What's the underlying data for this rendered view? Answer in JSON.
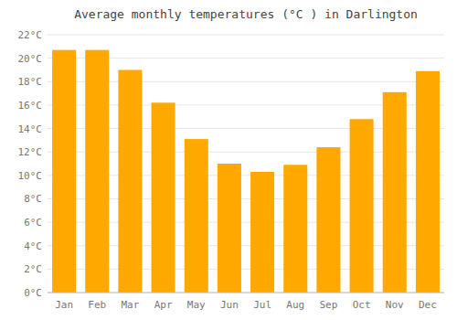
{
  "chart_data": {
    "type": "bar",
    "title": "Average monthly temperatures (°C ) in Darlington",
    "categories": [
      "Jan",
      "Feb",
      "Mar",
      "Apr",
      "May",
      "Jun",
      "Jul",
      "Aug",
      "Sep",
      "Oct",
      "Nov",
      "Dec"
    ],
    "values": [
      20.7,
      20.7,
      19.0,
      16.2,
      13.1,
      11.0,
      10.3,
      10.9,
      12.4,
      14.8,
      17.1,
      18.9
    ],
    "color": "#FFA800",
    "ylim": [
      0,
      22
    ],
    "yticks": [
      {
        "value": 0,
        "label": "0°C"
      },
      {
        "value": 2,
        "label": "2°C"
      },
      {
        "value": 4,
        "label": "4°C"
      },
      {
        "value": 6,
        "label": "6°C"
      },
      {
        "value": 8,
        "label": "8°C"
      },
      {
        "value": 10,
        "label": "10°C"
      },
      {
        "value": 12,
        "label": "12°C"
      },
      {
        "value": 14,
        "label": "14°C"
      },
      {
        "value": 16,
        "label": "16°C"
      },
      {
        "value": 18,
        "label": "18°C"
      },
      {
        "value": 20,
        "label": "20°C"
      },
      {
        "value": 22,
        "label": "22°C"
      }
    ],
    "grid": true
  }
}
